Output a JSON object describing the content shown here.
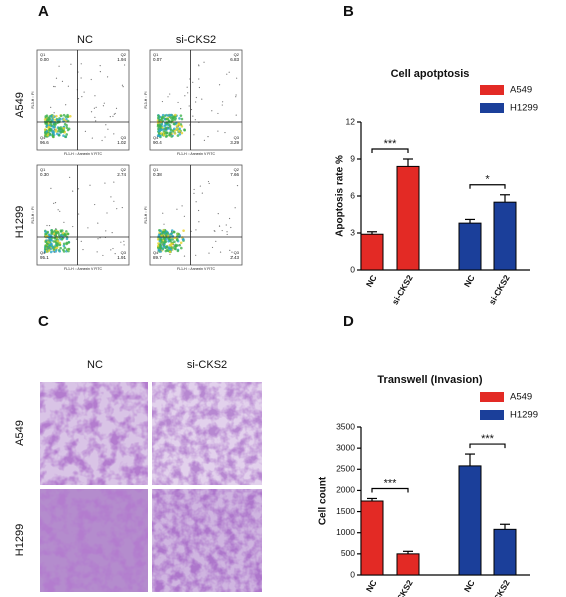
{
  "panels": {
    "A": {
      "label": "A",
      "columns": [
        "NC",
        "si-CKS2"
      ],
      "rows": [
        "A549",
        "H1299"
      ],
      "x_axis_label": "FL1-H :: Annexin V FITC",
      "y_axis_label": "FL3-H :: PI",
      "quadrant_names": [
        "Q1",
        "Q2",
        "Q3",
        "Q4"
      ],
      "plots": [
        {
          "Q1": "0.00",
          "Q2": "1.94",
          "Q3": "1.02",
          "Q4": "96.6"
        },
        {
          "Q1": "0.07",
          "Q2": "6.83",
          "Q3": "3.29",
          "Q4": "90.4"
        },
        {
          "Q1": "0.30",
          "Q2": "2.74",
          "Q3": "1.91",
          "Q4": "95.1"
        },
        {
          "Q1": "0.38",
          "Q2": "7.66",
          "Q3": "2.43",
          "Q4": "89.7"
        }
      ]
    },
    "C": {
      "label": "C",
      "columns": [
        "NC",
        "si-CKS2"
      ],
      "rows": [
        "A549",
        "H1299"
      ]
    }
  },
  "chart_data": [
    {
      "type": "bar",
      "panel": "B",
      "title": "Cell apotptosis",
      "y_label": "Apoptosis rate %",
      "ylim": [
        0,
        12
      ],
      "yticks": [
        0,
        3,
        6,
        9,
        12
      ],
      "series": [
        {
          "name": "A549",
          "color": "#e32a25",
          "categories": [
            "NC",
            "si-CKS2"
          ],
          "values": [
            2.9,
            8.4
          ],
          "errors": [
            0.2,
            0.6
          ],
          "significance": "***"
        },
        {
          "name": "H1299",
          "color": "#1b3f9a",
          "categories": [
            "NC",
            "si-CKS2"
          ],
          "values": [
            3.8,
            5.5
          ],
          "errors": [
            0.3,
            0.6
          ],
          "significance": "*"
        }
      ]
    },
    {
      "type": "bar",
      "panel": "D",
      "title": "Transwell (Invasion)",
      "y_label": "Cell count",
      "ylim": [
        0,
        3500
      ],
      "yticks": [
        0,
        500,
        1000,
        1500,
        2000,
        2500,
        3000,
        3500
      ],
      "series": [
        {
          "name": "A549",
          "color": "#e32a25",
          "categories": [
            "NC",
            "si-CKS2"
          ],
          "values": [
            1750,
            500
          ],
          "errors": [
            60,
            60
          ],
          "significance": "***"
        },
        {
          "name": "H1299",
          "color": "#1b3f9a",
          "categories": [
            "NC",
            "si-CKS2"
          ],
          "values": [
            2580,
            1080
          ],
          "errors": [
            280,
            120
          ],
          "significance": "***"
        }
      ]
    }
  ]
}
